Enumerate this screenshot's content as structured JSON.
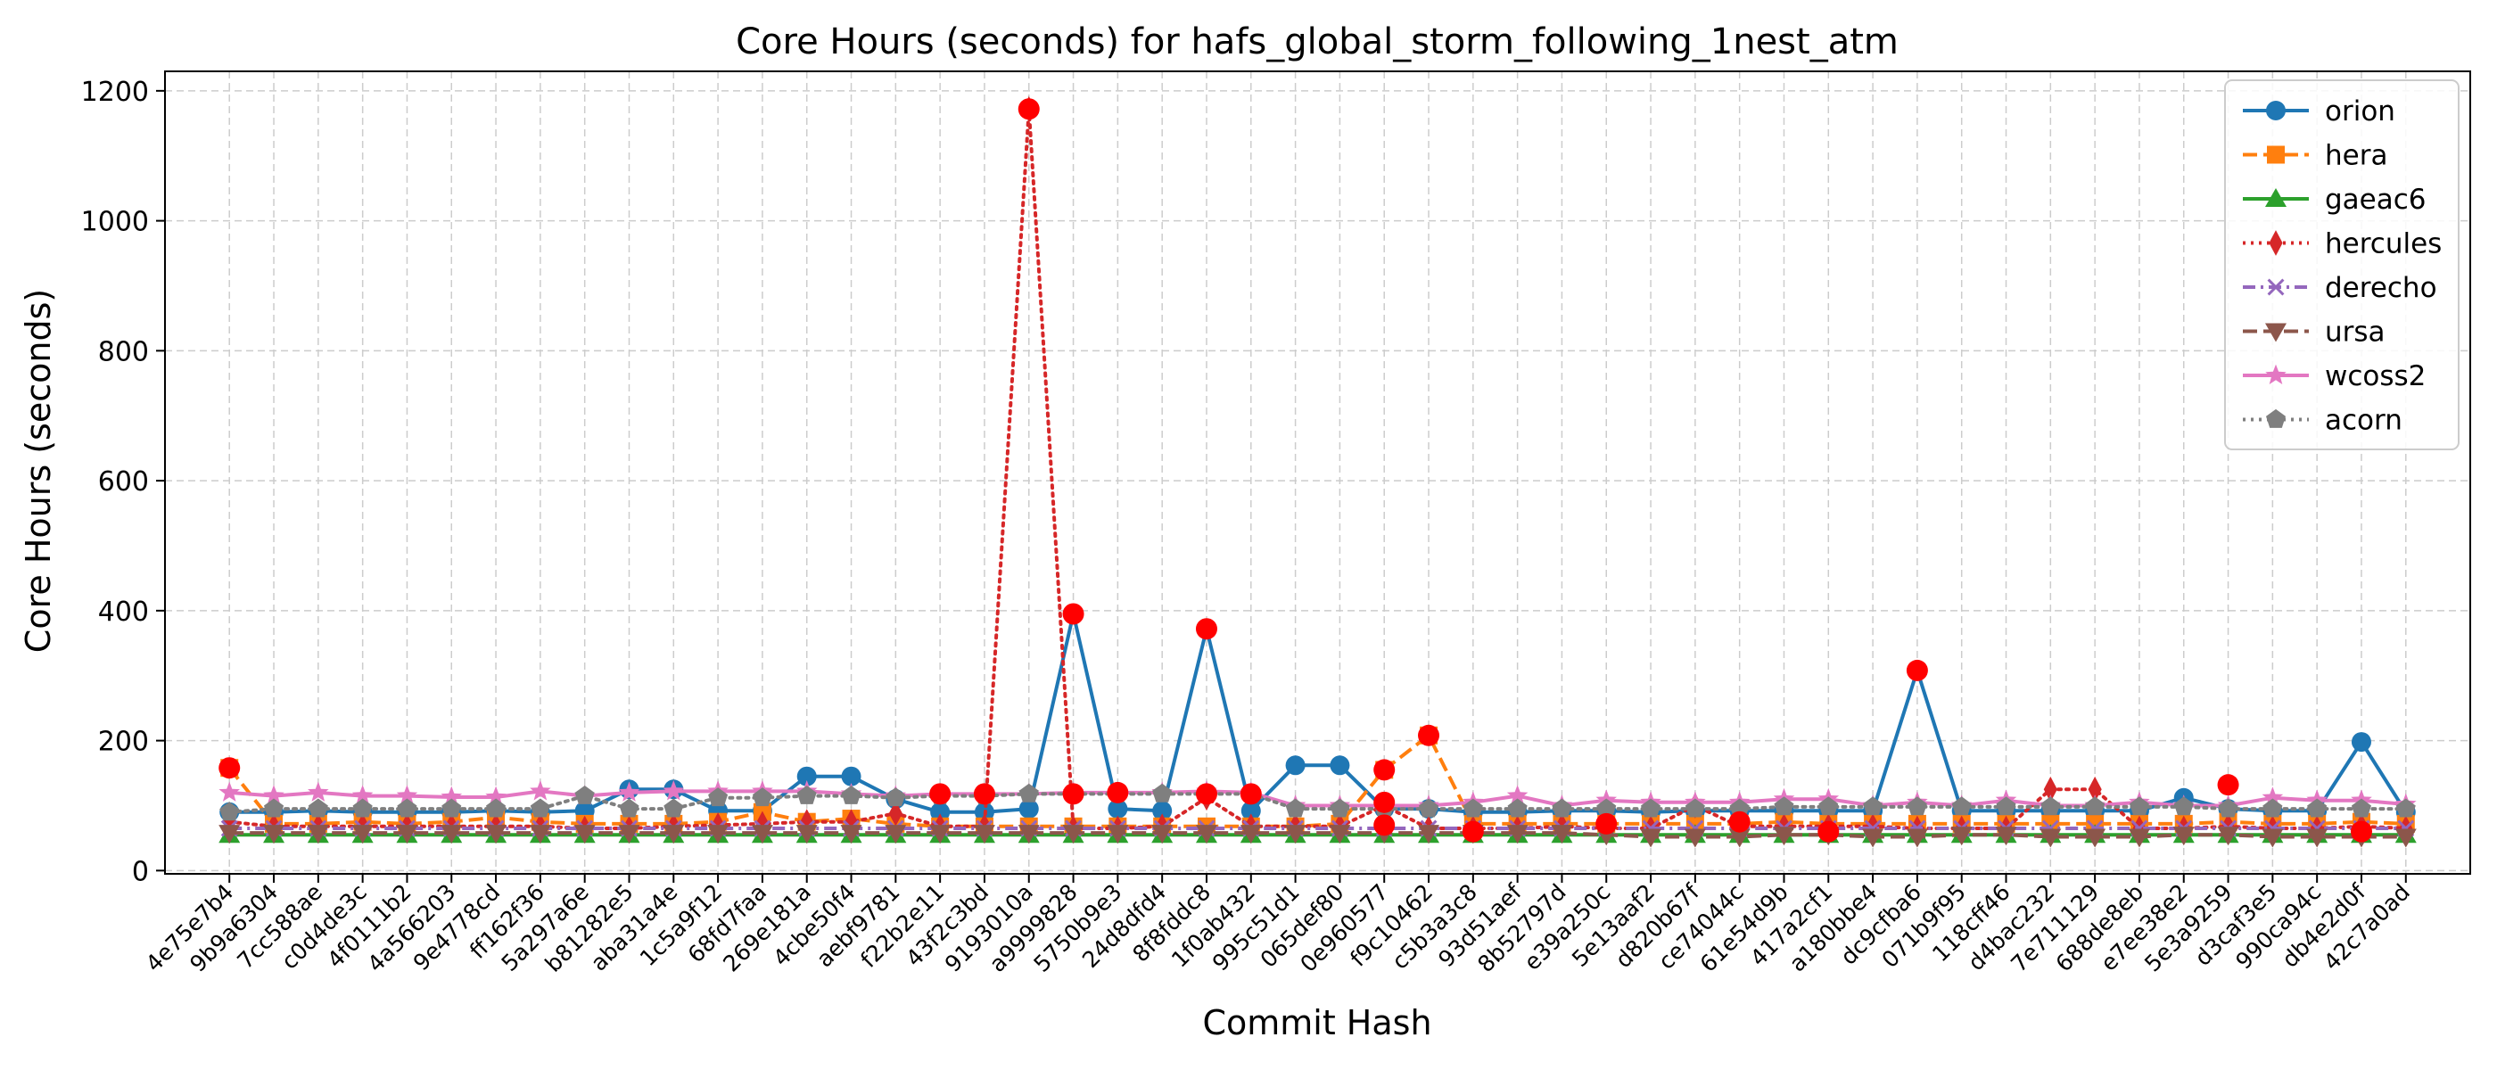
{
  "chart_data": {
    "type": "line",
    "title": "Core Hours (seconds) for hafs_global_storm_following_1nest_atm",
    "xlabel": "Commit Hash",
    "ylabel": "Core Hours (seconds)",
    "ylim": [
      -5,
      1230
    ],
    "yticks": [
      0,
      200,
      400,
      600,
      800,
      1000,
      1200
    ],
    "grid": true,
    "legend_position": "upper-right",
    "categories": [
      "4e75e7b4",
      "9b9a6304",
      "7cc588ae",
      "c0d4de3c",
      "4f0111b2",
      "4a566203",
      "9e4778cd",
      "ff162f36",
      "5a297a6e",
      "b81282e5",
      "aba31a4e",
      "1c5a9f12",
      "68fd7faa",
      "269e181a",
      "4cbe50f4",
      "aebf9781",
      "f22b2e11",
      "43f2c3bd",
      "9193010a",
      "a9999828",
      "5750b9e3",
      "24d8dfd4",
      "8f8fddc8",
      "1f0ab432",
      "995c51d1",
      "065def80",
      "0e960577",
      "f9c10462",
      "c5b3a3c8",
      "93d51aef",
      "8b52797d",
      "e39a250c",
      "5e13aaf2",
      "d820b67f",
      "ce74044c",
      "61e54d9b",
      "417a2cf1",
      "a180bbe4",
      "dc9cfba6",
      "071b9f95",
      "118cff46",
      "d4bac232",
      "7e711129",
      "688de8eb",
      "e7ee38e2",
      "5e3a9259",
      "d3caf3e5",
      "990ca94c",
      "db4e2d0f",
      "42c7a0ad"
    ],
    "series": [
      {
        "name": "orion",
        "color": "#1f77b4",
        "linestyle": "solid",
        "marker": "circle",
        "values": [
          90,
          90,
          92,
          90,
          90,
          90,
          92,
          90,
          92,
          125,
          125,
          92,
          92,
          145,
          145,
          110,
          90,
          90,
          95,
          395,
          95,
          92,
          372,
          92,
          162,
          162,
          95,
          95,
          90,
          90,
          92,
          92,
          90,
          92,
          92,
          92,
          92,
          92,
          308,
          92,
          92,
          92,
          92,
          92,
          112,
          95,
          92,
          92,
          198,
          90
        ]
      },
      {
        "name": "hera",
        "color": "#ff7f0e",
        "linestyle": "dashed",
        "marker": "square",
        "values": [
          158,
          72,
          72,
          75,
          72,
          75,
          82,
          75,
          72,
          72,
          72,
          75,
          90,
          75,
          80,
          72,
          68,
          68,
          68,
          68,
          68,
          68,
          68,
          68,
          68,
          72,
          155,
          208,
          72,
          72,
          72,
          72,
          72,
          72,
          72,
          75,
          72,
          72,
          72,
          72,
          72,
          72,
          72,
          72,
          72,
          75,
          72,
          72,
          75,
          72
        ]
      },
      {
        "name": "gaeac6",
        "color": "#2ca02c",
        "linestyle": "solid",
        "marker": "triangle-up",
        "values": [
          55,
          55,
          55,
          55,
          55,
          55,
          55,
          55,
          55,
          55,
          55,
          55,
          55,
          55,
          55,
          55,
          55,
          55,
          55,
          55,
          55,
          55,
          55,
          55,
          55,
          55,
          55,
          55,
          55,
          55,
          55,
          55,
          55,
          55,
          55,
          55,
          55,
          55,
          55,
          55,
          55,
          55,
          55,
          55,
          55,
          55,
          55,
          55,
          55,
          55
        ]
      },
      {
        "name": "hercules",
        "color": "#d62728",
        "linestyle": "dotted",
        "marker": "thin-diamond",
        "values": [
          75,
          68,
          68,
          68,
          68,
          68,
          68,
          68,
          65,
          65,
          68,
          70,
          72,
          75,
          75,
          88,
          68,
          68,
          1172,
          65,
          65,
          68,
          112,
          68,
          68,
          68,
          100,
          65,
          65,
          65,
          68,
          65,
          65,
          100,
          68,
          68,
          68,
          68,
          65,
          65,
          65,
          125,
          125,
          65,
          65,
          68,
          65,
          65,
          68,
          65
        ]
      },
      {
        "name": "derecho",
        "color": "#9467bd",
        "linestyle": "dashdot",
        "marker": "x",
        "values": [
          65,
          65,
          65,
          65,
          65,
          65,
          65,
          65,
          65,
          65,
          65,
          65,
          65,
          65,
          65,
          65,
          65,
          65,
          65,
          65,
          65,
          65,
          65,
          65,
          65,
          65,
          65,
          65,
          65,
          65,
          65,
          65,
          65,
          65,
          65,
          65,
          65,
          65,
          65,
          65,
          65,
          65,
          65,
          65,
          65,
          65,
          65,
          65,
          65,
          65
        ]
      },
      {
        "name": "ursa",
        "color": "#8c564b",
        "linestyle": "dashed",
        "marker": "triangle-down",
        "values": [
          58,
          58,
          58,
          58,
          58,
          58,
          58,
          58,
          58,
          58,
          58,
          58,
          58,
          58,
          58,
          58,
          58,
          58,
          58,
          58,
          58,
          58,
          58,
          58,
          58,
          58,
          58,
          58,
          58,
          58,
          58,
          55,
          52,
          52,
          52,
          55,
          55,
          52,
          52,
          55,
          55,
          52,
          52,
          52,
          55,
          55,
          52,
          52,
          52,
          52
        ]
      },
      {
        "name": "wcoss2",
        "color": "#e377c2",
        "linestyle": "solid",
        "marker": "star",
        "values": [
          120,
          115,
          120,
          115,
          115,
          113,
          113,
          122,
          115,
          120,
          122,
          122,
          122,
          122,
          118,
          115,
          118,
          118,
          118,
          120,
          120,
          120,
          122,
          120,
          100,
          100,
          100,
          100,
          105,
          115,
          100,
          108,
          105,
          105,
          105,
          110,
          110,
          100,
          105,
          100,
          108,
          100,
          100,
          105,
          100,
          100,
          112,
          108,
          108,
          102
        ]
      },
      {
        "name": "acorn",
        "color": "#7f7f7f",
        "linestyle": "dotted",
        "marker": "pentagon",
        "values": [
          90,
          95,
          95,
          95,
          95,
          95,
          95,
          95,
          115,
          95,
          95,
          112,
          112,
          115,
          115,
          112,
          115,
          115,
          118,
          118,
          118,
          118,
          118,
          118,
          95,
          95,
          95,
          95,
          95,
          95,
          95,
          95,
          95,
          95,
          95,
          98,
          98,
          98,
          98,
          98,
          98,
          98,
          98,
          98,
          98,
          95,
          95,
          95,
          95,
          95
        ]
      }
    ],
    "highlight_points": [
      {
        "x": "4e75e7b4",
        "y": 158
      },
      {
        "x": "f22b2e11",
        "y": 118
      },
      {
        "x": "43f2c3bd",
        "y": 118
      },
      {
        "x": "9193010a",
        "y": 1172
      },
      {
        "x": "a9999828",
        "y": 395
      },
      {
        "x": "a9999828",
        "y": 118
      },
      {
        "x": "5750b9e3",
        "y": 120
      },
      {
        "x": "8f8fddc8",
        "y": 372
      },
      {
        "x": "8f8fddc8",
        "y": 118
      },
      {
        "x": "1f0ab432",
        "y": 118
      },
      {
        "x": "0e960577",
        "y": 155
      },
      {
        "x": "0e960577",
        "y": 105
      },
      {
        "x": "0e960577",
        "y": 70
      },
      {
        "x": "f9c10462",
        "y": 208
      },
      {
        "x": "c5b3a3c8",
        "y": 60
      },
      {
        "x": "e39a250c",
        "y": 72
      },
      {
        "x": "ce74044c",
        "y": 75
      },
      {
        "x": "417a2cf1",
        "y": 60
      },
      {
        "x": "dc9cfba6",
        "y": 308
      },
      {
        "x": "5e3a9259",
        "y": 132
      },
      {
        "x": "db4e2d0f",
        "y": 60
      }
    ],
    "highlight_color": "#ff0000"
  }
}
